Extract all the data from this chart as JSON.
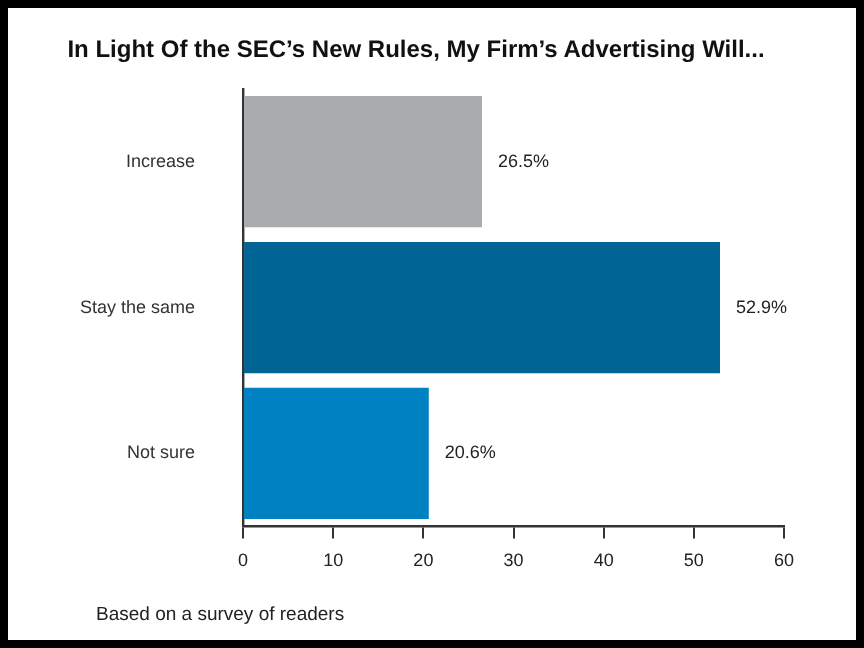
{
  "chart_data": {
    "type": "bar",
    "orientation": "horizontal",
    "title": "In Light Of the SEC’s New Rules, My Firm’s Advertising Will...",
    "categories": [
      "Increase",
      "Stay the same",
      "Not sure"
    ],
    "values": [
      26.5,
      52.9,
      20.6
    ],
    "colors": [
      "#a9abae",
      "#006494",
      "#0081c2"
    ],
    "value_labels": [
      "26.5%",
      "52.9%",
      "20.6%"
    ],
    "xlim": [
      0,
      60
    ],
    "xticks": [
      0,
      10,
      20,
      30,
      40,
      50,
      60
    ],
    "grid": false,
    "legend": false,
    "annotations": [
      "Based on a survey of readers"
    ]
  }
}
